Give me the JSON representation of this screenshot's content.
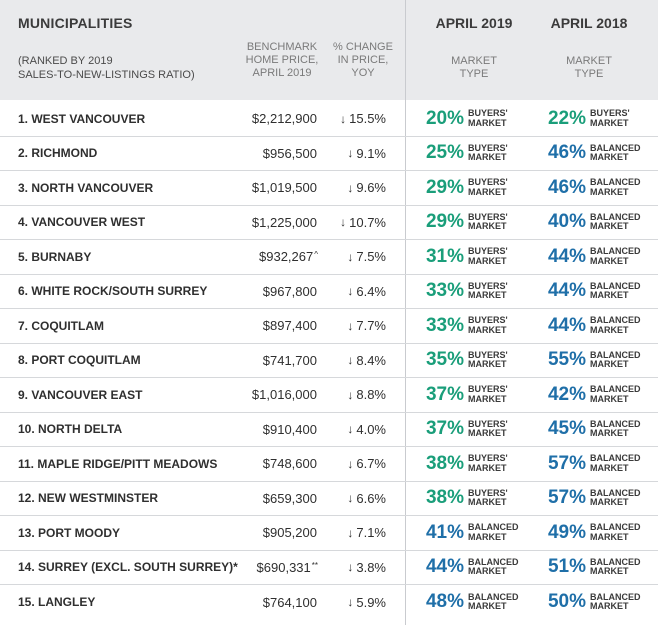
{
  "header": {
    "title": "MUNICIPALITIES",
    "subtitle_line1": "(RANKED BY 2019",
    "subtitle_line2": "SALES-TO-NEW-LISTINGS RATIO)",
    "benchmark_line1": "BENCHMARK",
    "benchmark_line2": "HOME PRICE,",
    "benchmark_line3": "APRIL 2019",
    "change_line1": "% CHANGE",
    "change_line2": "IN PRICE,",
    "change_line3": "YOY",
    "year_2019": "APRIL 2019",
    "year_2018": "APRIL 2018",
    "market_line1": "MARKET",
    "market_line2": "TYPE"
  },
  "colors": {
    "buyers": "#1a9e7a",
    "balanced": "#1f6fa8",
    "header_bg": "#e9eaec"
  },
  "arrow_icon": "↓",
  "rows": [
    {
      "name": "1. WEST VANCOUVER",
      "price": "$2,212,900",
      "mark": "",
      "change": "15.5%",
      "p19": "20%",
      "t19a": "BUYERS'",
      "t19b": "MARKET",
      "c19": "buyers",
      "p18": "22%",
      "t18a": "BUYERS'",
      "t18b": "MARKET",
      "c18": "buyers"
    },
    {
      "name": "2. RICHMOND",
      "price": "$956,500",
      "mark": "",
      "change": "9.1%",
      "p19": "25%",
      "t19a": "BUYERS'",
      "t19b": "MARKET",
      "c19": "buyers",
      "p18": "46%",
      "t18a": "BALANCED",
      "t18b": "MARKET",
      "c18": "balanced"
    },
    {
      "name": "3. NORTH VANCOUVER",
      "price": "$1,019,500",
      "mark": "",
      "change": "9.6%",
      "p19": "29%",
      "t19a": "BUYERS'",
      "t19b": "MARKET",
      "c19": "buyers",
      "p18": "46%",
      "t18a": "BALANCED",
      "t18b": "MARKET",
      "c18": "balanced"
    },
    {
      "name": "4. VANCOUVER WEST",
      "price": "$1,225,000",
      "mark": "",
      "change": "10.7%",
      "p19": "29%",
      "t19a": "BUYERS'",
      "t19b": "MARKET",
      "c19": "buyers",
      "p18": "40%",
      "t18a": "BALANCED",
      "t18b": "MARKET",
      "c18": "balanced"
    },
    {
      "name": "5. BURNABY",
      "price": "$932,267",
      "mark": "^",
      "change": "7.5%",
      "p19": "31%",
      "t19a": "BUYERS'",
      "t19b": "MARKET",
      "c19": "buyers",
      "p18": "44%",
      "t18a": "BALANCED",
      "t18b": "MARKET",
      "c18": "balanced"
    },
    {
      "name": "6. WHITE ROCK/SOUTH SURREY",
      "price": "$967,800",
      "mark": "",
      "change": "6.4%",
      "p19": "33%",
      "t19a": "BUYERS'",
      "t19b": "MARKET",
      "c19": "buyers",
      "p18": "44%",
      "t18a": "BALANCED",
      "t18b": "MARKET",
      "c18": "balanced"
    },
    {
      "name": "7. COQUITLAM",
      "price": "$897,400",
      "mark": "",
      "change": "7.7%",
      "p19": "33%",
      "t19a": "BUYERS'",
      "t19b": "MARKET",
      "c19": "buyers",
      "p18": "44%",
      "t18a": "BALANCED",
      "t18b": "MARKET",
      "c18": "balanced"
    },
    {
      "name": "8. PORT COQUITLAM",
      "price": "$741,700",
      "mark": "",
      "change": "8.4%",
      "p19": "35%",
      "t19a": "BUYERS'",
      "t19b": "MARKET",
      "c19": "buyers",
      "p18": "55%",
      "t18a": "BALANCED",
      "t18b": "MARKET",
      "c18": "balanced"
    },
    {
      "name": "9. VANCOUVER EAST",
      "price": "$1,016,000",
      "mark": "",
      "change": "8.8%",
      "p19": "37%",
      "t19a": "BUYERS'",
      "t19b": "MARKET",
      "c19": "buyers",
      "p18": "42%",
      "t18a": "BALANCED",
      "t18b": "MARKET",
      "c18": "balanced"
    },
    {
      "name": "10. NORTH DELTA",
      "price": "$910,400",
      "mark": "",
      "change": "4.0%",
      "p19": "37%",
      "t19a": "BUYERS'",
      "t19b": "MARKET",
      "c19": "buyers",
      "p18": "45%",
      "t18a": "BALANCED",
      "t18b": "MARKET",
      "c18": "balanced"
    },
    {
      "name": "11. MAPLE RIDGE/PITT MEADOWS",
      "price": "$748,600",
      "mark": "",
      "change": "6.7%",
      "p19": "38%",
      "t19a": "BUYERS'",
      "t19b": "MARKET",
      "c19": "buyers",
      "p18": "57%",
      "t18a": "BALANCED",
      "t18b": "MARKET",
      "c18": "balanced"
    },
    {
      "name": "12. NEW WESTMINSTER",
      "price": "$659,300",
      "mark": "",
      "change": "6.6%",
      "p19": "38%",
      "t19a": "BUYERS'",
      "t19b": "MARKET",
      "c19": "buyers",
      "p18": "57%",
      "t18a": "BALANCED",
      "t18b": "MARKET",
      "c18": "balanced"
    },
    {
      "name": "13. PORT MOODY",
      "price": "$905,200",
      "mark": "",
      "change": "7.1%",
      "p19": "41%",
      "t19a": "BALANCED",
      "t19b": "MARKET",
      "c19": "balanced",
      "p18": "49%",
      "t18a": "BALANCED",
      "t18b": "MARKET",
      "c18": "balanced"
    },
    {
      "name": "14. SURREY (EXCL. SOUTH SURREY)*",
      "price": "$690,331",
      "mark": "**",
      "change": "3.8%",
      "p19": "44%",
      "t19a": "BALANCED",
      "t19b": "MARKET",
      "c19": "balanced",
      "p18": "51%",
      "t18a": "BALANCED",
      "t18b": "MARKET",
      "c18": "balanced"
    },
    {
      "name": "15. LANGLEY",
      "price": "$764,100",
      "mark": "",
      "change": "5.9%",
      "p19": "48%",
      "t19a": "BALANCED",
      "t19b": "MARKET",
      "c19": "balanced",
      "p18": "50%",
      "t18a": "BALANCED",
      "t18b": "MARKET",
      "c18": "balanced"
    }
  ]
}
